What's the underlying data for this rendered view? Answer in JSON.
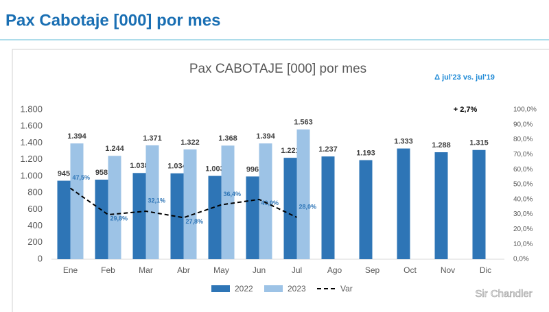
{
  "header": {
    "title": "Pax Cabotaje [000] por mes"
  },
  "watermark": "Sir Chandler",
  "chart_data": {
    "type": "bar",
    "title": "Pax CABOTAJE [000] por mes",
    "annotations": [
      "Δ jul'23 vs. jul'19",
      "+ 2,7%"
    ],
    "categories": [
      "Ene",
      "Feb",
      "Mar",
      "Abr",
      "May",
      "Jun",
      "Jul",
      "Ago",
      "Sep",
      "Oct",
      "Nov",
      "Dic"
    ],
    "series": [
      {
        "name": "2022",
        "color": "#2e75b6",
        "values": [
          945,
          958,
          1038,
          1034,
          1003,
          996,
          1221,
          1237,
          1193,
          1333,
          1288,
          1315
        ],
        "value_labels": [
          "945",
          "958",
          "1.038",
          "1.034",
          "1.003",
          "996",
          "1.221",
          "1.237",
          "1.193",
          "1.333",
          "1.288",
          "1.315"
        ]
      },
      {
        "name": "2023",
        "color": "#9dc3e6",
        "values": [
          1394,
          1244,
          1371,
          1322,
          1368,
          1394,
          1563,
          null,
          null,
          null,
          null,
          null
        ],
        "value_labels": [
          "1.394",
          "1.244",
          "1.371",
          "1.322",
          "1.368",
          "1.394",
          "1.563",
          null,
          null,
          null,
          null,
          null
        ]
      },
      {
        "name": "Var",
        "color": "#000000",
        "type": "line",
        "dashed": true,
        "axis": "y2",
        "label_color": "#2e75b6",
        "values": [
          47.5,
          29.8,
          32.1,
          27.8,
          36.4,
          40.0,
          28.0,
          null,
          null,
          null,
          null,
          null
        ],
        "value_labels": [
          "47,5%",
          "29,8%",
          "32,1%",
          "27,8%",
          "36,4%",
          "40,0%",
          "28,0%",
          null,
          null,
          null,
          null,
          null
        ]
      }
    ],
    "ylim": [
      0,
      1800
    ],
    "yticks": [
      0,
      200,
      400,
      600,
      800,
      {
        "value": 1000,
        "label": "1.000"
      },
      {
        "value": 1200,
        "label": "1.200"
      },
      {
        "value": 1400,
        "label": "1.400"
      },
      {
        "value": 1600,
        "label": "1.600"
      },
      {
        "value": 1800,
        "label": "1.800"
      }
    ],
    "y2lim": [
      0,
      100
    ],
    "y2ticks": [
      {
        "value": 0,
        "label": "0,0%"
      },
      {
        "value": 10,
        "label": "10,0%"
      },
      {
        "value": 20,
        "label": "20,0%"
      },
      {
        "value": 30,
        "label": "30,0%"
      },
      {
        "value": 40,
        "label": "40,0%"
      },
      {
        "value": 50,
        "label": "50,0%"
      },
      {
        "value": 60,
        "label": "60,0%"
      },
      {
        "value": 70,
        "label": "70,0%"
      },
      {
        "value": 80,
        "label": "80,0%"
      },
      {
        "value": 90,
        "label": "90,0%"
      },
      {
        "value": 100,
        "label": "100,0%"
      }
    ],
    "grid": false,
    "legend": "bottom"
  }
}
